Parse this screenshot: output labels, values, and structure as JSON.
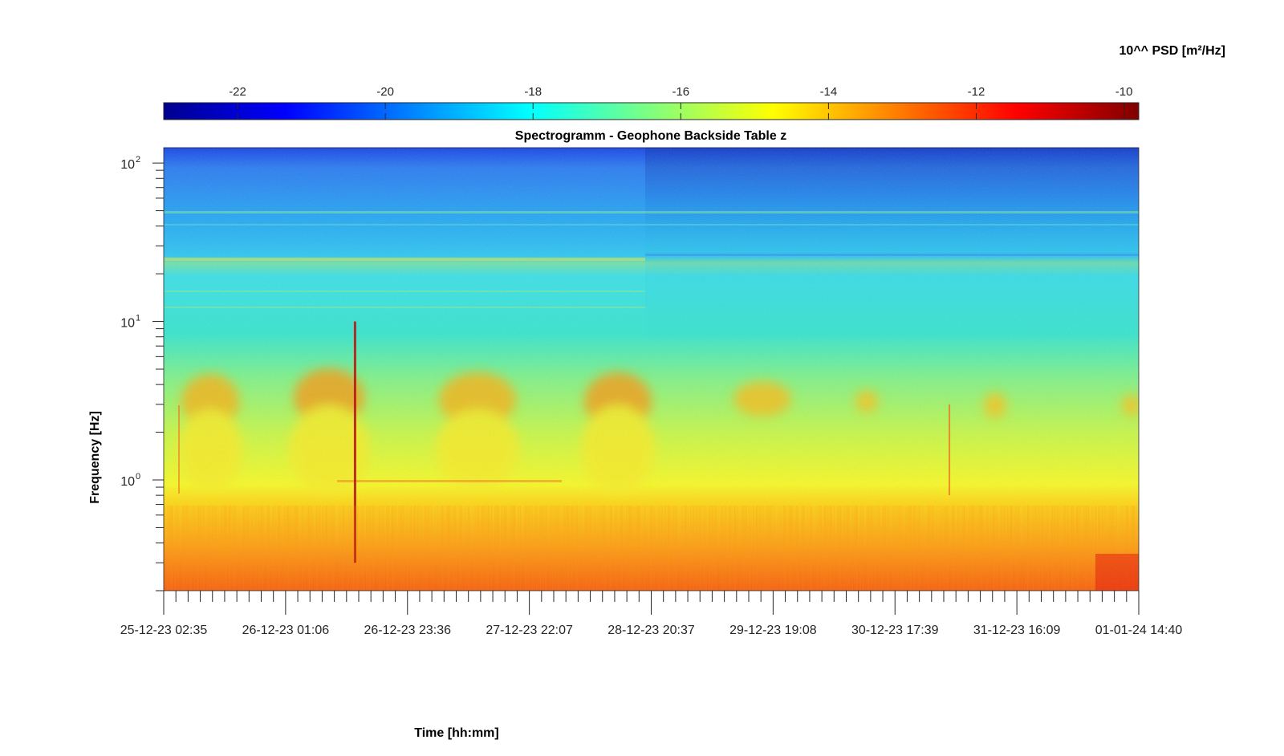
{
  "chart_data": {
    "type": "heatmap",
    "title": "Spectrogramm - Geophone Backside Table z",
    "xlabel": "Time [hh:mm]",
    "ylabel": "Frequency [Hz]",
    "x_ticks": [
      "25-12-23 02:35",
      "26-12-23 01:06",
      "26-12-23 23:36",
      "27-12-23 22:07",
      "28-12-23 20:37",
      "29-12-23 19:08",
      "30-12-23 17:39",
      "31-12-23 16:09",
      "01-01-24 14:40"
    ],
    "y_scale": "log",
    "y_tick_exponents": [
      0,
      1,
      2
    ],
    "y_tick_base": "10",
    "ylim": [
      0.2,
      125
    ],
    "colorbar": {
      "label": "10^^ PSD [m²/Hz]",
      "ticks": [
        "-22",
        "-20",
        "-18",
        "-16",
        "-14",
        "-12",
        "-10"
      ],
      "tick_values": [
        -22,
        -20,
        -18,
        -16,
        -14,
        -12,
        -10
      ],
      "range": [
        -23,
        -9.8
      ],
      "colormap": "jet",
      "placement": "top"
    },
    "events": [
      {
        "type": "vertical-spike",
        "x_fraction": 0.195,
        "freq_range": [
          0.3,
          10
        ]
      },
      {
        "type": "vertical-spike",
        "x_fraction": 0.805,
        "freq_range": [
          0.8,
          3
        ]
      }
    ]
  }
}
